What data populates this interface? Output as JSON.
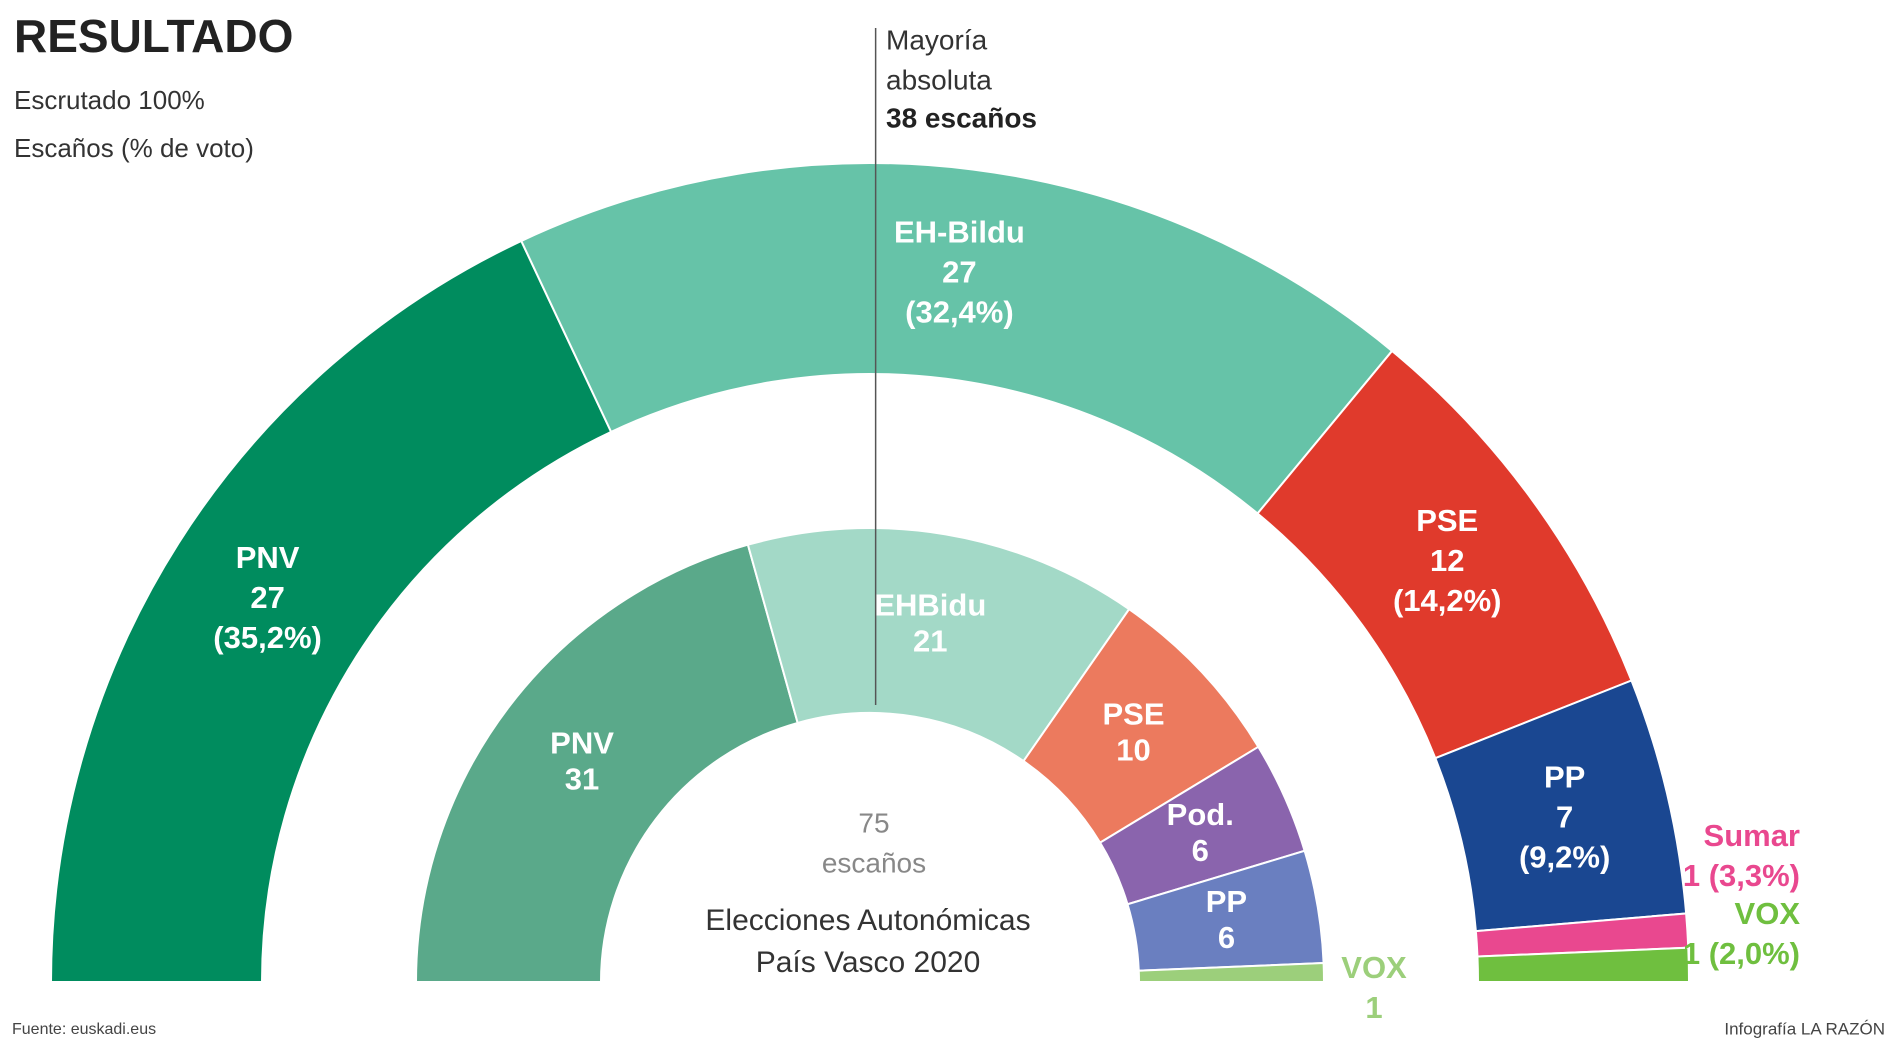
{
  "chart_data": {
    "type": "parliament",
    "title": "RESULTADO",
    "subtitle": [
      "Escrutado 100%",
      "Escaños (% de voto)"
    ],
    "majority": {
      "label": [
        "Mayoría",
        "absoluta"
      ],
      "value": 38,
      "value_label": "38 escaños"
    },
    "total": 75,
    "total_label": "escaños",
    "caption": [
      "Elecciones Autonómicas",
      "País Vasco 2020"
    ],
    "source": "Fuente: euskadi.eus",
    "credit": "Infografía LA RAZÓN",
    "rings": [
      {
        "parties": [
          "PNV",
          "EH-Bildu",
          "PSE",
          "PP",
          "Sumar",
          "VOX"
        ],
        "seats": [
          27,
          27,
          12,
          7,
          1,
          1
        ],
        "vote_share": [
          35.2,
          32.4,
          14.2,
          9.2,
          3.3,
          2.0
        ],
        "vote_labels": [
          "(35,2%)",
          "(32,4%)",
          "(14,2%)",
          "(9,2%)",
          "(3,3%)",
          "(2,0%)"
        ],
        "colors": [
          "#008c5e",
          "#66c3a8",
          "#e03a2c",
          "#1a4791",
          "#e9488f",
          "#6fbf3f"
        ]
      },
      {
        "parties": [
          "PNV",
          "EHBidu",
          "PSE",
          "Pod.",
          "PP",
          "VOX"
        ],
        "seats": [
          31,
          21,
          10,
          6,
          6,
          1
        ],
        "colors": [
          "#5aa98a",
          "#a3d9c7",
          "#ec7a5e",
          "#8a64ad",
          "#6a7fc0",
          "#9ccf7b"
        ]
      }
    ]
  }
}
